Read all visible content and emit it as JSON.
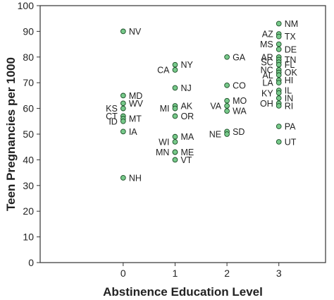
{
  "chart_data": {
    "type": "scatter",
    "title": "",
    "xlabel": "Abstinence Education Level",
    "ylabel": "Teen Pregnancies per 1000",
    "xlim": [
      -1.6,
      3.9
    ],
    "ylim": [
      0,
      100
    ],
    "x_ticks": [
      0,
      1,
      2,
      3
    ],
    "y_ticks": [
      0,
      10,
      20,
      30,
      40,
      50,
      60,
      70,
      80,
      90,
      100
    ],
    "grid": false,
    "marker_color": "#77c98a",
    "marker_edge_color": "#1a4d26",
    "points": [
      {
        "label": "NV",
        "x": 0,
        "y": 90,
        "side": "right"
      },
      {
        "label": "MD",
        "x": 0,
        "y": 65,
        "side": "right"
      },
      {
        "label": "WV",
        "x": 0,
        "y": 62,
        "side": "right"
      },
      {
        "label": "KS",
        "x": 0,
        "y": 60,
        "side": "left"
      },
      {
        "label": "CT",
        "x": 0,
        "y": 57,
        "side": "left"
      },
      {
        "label": "MT",
        "x": 0,
        "y": 56,
        "side": "right"
      },
      {
        "label": "ID",
        "x": 0,
        "y": 55,
        "side": "left"
      },
      {
        "label": "IA",
        "x": 0,
        "y": 51,
        "side": "right"
      },
      {
        "label": "NH",
        "x": 0,
        "y": 33,
        "side": "right"
      },
      {
        "label": "NY",
        "x": 1,
        "y": 77,
        "side": "right"
      },
      {
        "label": "CA",
        "x": 1,
        "y": 75,
        "side": "left"
      },
      {
        "label": "NJ",
        "x": 1,
        "y": 68,
        "side": "right"
      },
      {
        "label": "AK",
        "x": 1,
        "y": 61,
        "side": "right"
      },
      {
        "label": "MI",
        "x": 1,
        "y": 60,
        "side": "left"
      },
      {
        "label": "OR",
        "x": 1,
        "y": 57,
        "side": "right"
      },
      {
        "label": "MA",
        "x": 1,
        "y": 49,
        "side": "right"
      },
      {
        "label": "WI",
        "x": 1,
        "y": 47,
        "side": "left"
      },
      {
        "label": "MN",
        "x": 1,
        "y": 43,
        "side": "left"
      },
      {
        "label": "ME",
        "x": 1,
        "y": 43,
        "side": "right"
      },
      {
        "label": "VT",
        "x": 1,
        "y": 40,
        "side": "right"
      },
      {
        "label": "GA",
        "x": 2,
        "y": 80,
        "side": "right"
      },
      {
        "label": "CO",
        "x": 2,
        "y": 69,
        "side": "right"
      },
      {
        "label": "MO",
        "x": 2,
        "y": 63,
        "side": "right"
      },
      {
        "label": "VA",
        "x": 2,
        "y": 61,
        "side": "left"
      },
      {
        "label": "WA",
        "x": 2,
        "y": 59,
        "side": "right"
      },
      {
        "label": "SD",
        "x": 2,
        "y": 51,
        "side": "right"
      },
      {
        "label": "NE",
        "x": 2,
        "y": 50,
        "side": "left"
      },
      {
        "label": "NM",
        "x": 3,
        "y": 93,
        "side": "right"
      },
      {
        "label": "AZ",
        "x": 3,
        "y": 89,
        "side": "left"
      },
      {
        "label": "TX",
        "x": 3,
        "y": 88,
        "side": "right"
      },
      {
        "label": "MS",
        "x": 3,
        "y": 85,
        "side": "left"
      },
      {
        "label": "DE",
        "x": 3,
        "y": 83,
        "side": "right"
      },
      {
        "label": "AR",
        "x": 3,
        "y": 80,
        "side": "left"
      },
      {
        "label": "TN",
        "x": 3,
        "y": 79,
        "side": "right"
      },
      {
        "label": "SC",
        "x": 3,
        "y": 78,
        "side": "left"
      },
      {
        "label": "FL",
        "x": 3,
        "y": 77,
        "side": "right"
      },
      {
        "label": "NC",
        "x": 3,
        "y": 75,
        "side": "left"
      },
      {
        "label": "OK",
        "x": 3,
        "y": 74,
        "side": "right"
      },
      {
        "label": "AL",
        "x": 3,
        "y": 73,
        "side": "left"
      },
      {
        "label": "HI",
        "x": 3,
        "y": 71,
        "side": "right"
      },
      {
        "label": "LA",
        "x": 3,
        "y": 70,
        "side": "left"
      },
      {
        "label": "IL",
        "x": 3,
        "y": 67,
        "side": "right"
      },
      {
        "label": "KY",
        "x": 3,
        "y": 66,
        "side": "left"
      },
      {
        "label": "IN",
        "x": 3,
        "y": 64,
        "side": "right"
      },
      {
        "label": "OH",
        "x": 3,
        "y": 62,
        "side": "left"
      },
      {
        "label": "RI",
        "x": 3,
        "y": 61,
        "side": "right"
      },
      {
        "label": "PA",
        "x": 3,
        "y": 53,
        "side": "right"
      },
      {
        "label": "UT",
        "x": 3,
        "y": 47,
        "side": "right"
      }
    ]
  }
}
